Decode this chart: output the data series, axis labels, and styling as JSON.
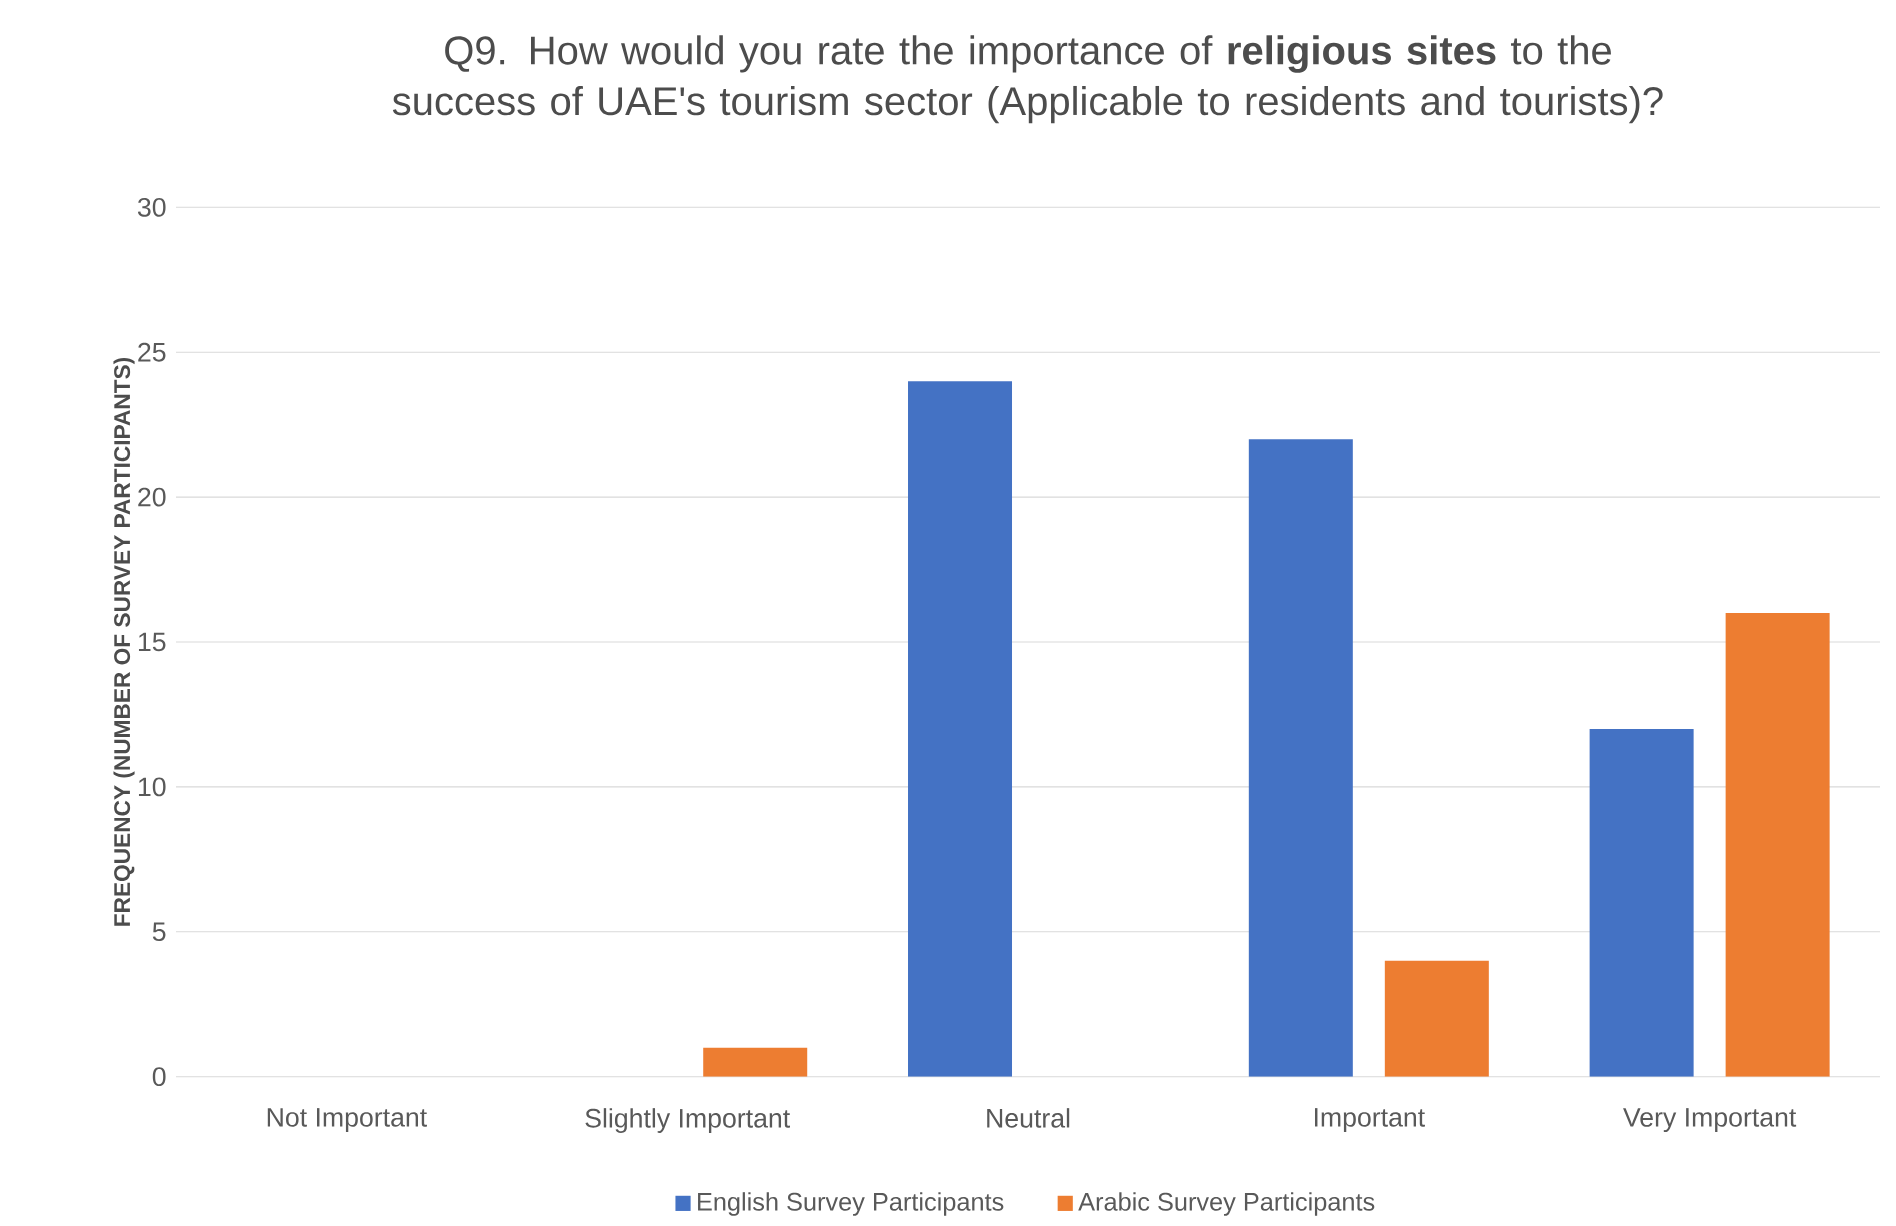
{
  "chart_data": {
    "type": "bar",
    "title": "Q9. How would you rate the importance of **religious sites** to the success of UAE's tourism sector (Applicable to residents and tourists)?",
    "ylabel": "FREQUENCY (NUMBER OF SURVEY PARTICIPANTS)",
    "categories": [
      "Not Important",
      "Slightly Important",
      "Neutral",
      "Important",
      "Very Important"
    ],
    "series": [
      {
        "name": "English Survey Participants",
        "color": "#4472c4",
        "values": [
          0,
          0,
          24,
          22,
          12
        ]
      },
      {
        "name": "Arabic Survey Participants",
        "color": "#ed7d31",
        "values": [
          0,
          1,
          0,
          4,
          16
        ]
      }
    ],
    "ylim": [
      0,
      30
    ],
    "yticks": [
      0,
      5,
      10,
      15,
      20,
      25,
      30
    ],
    "grid": "y",
    "legend": "bottom"
  }
}
